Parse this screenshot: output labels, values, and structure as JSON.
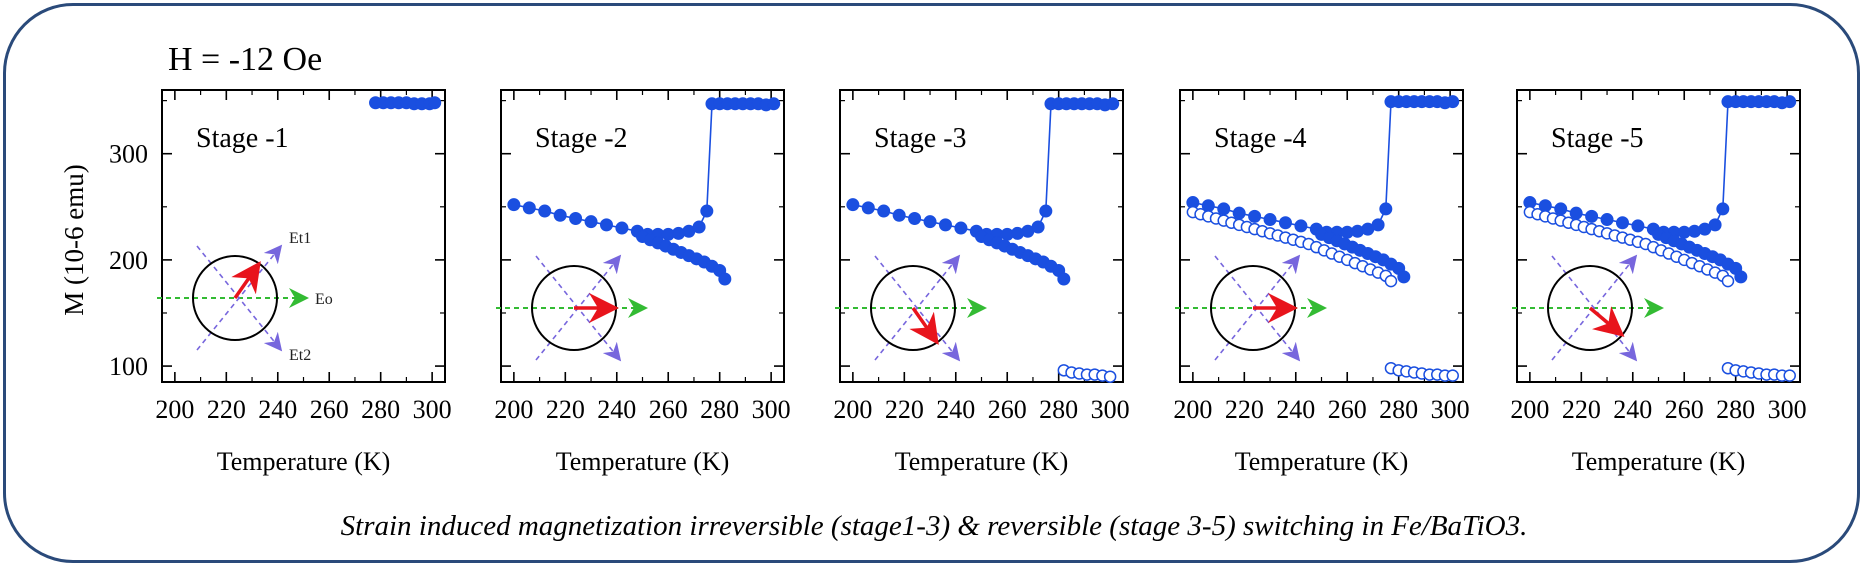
{
  "header": "H = -12 Oe",
  "caption": "Strain induced magnetization irreversible (stage1-3) & reversible (stage 3-5) switching in Fe/BaTiO3.",
  "colors": {
    "data": "#1a4fe0",
    "frame": "#2a4a7a",
    "eo_arrow": "#33bb33",
    "et_arrows": "#7766dd",
    "m_arrow": "#e8141c"
  },
  "chart_data": [
    {
      "type": "scatter",
      "title": "Stage -1",
      "xlabel": "Temperature (K)",
      "ylabel": "M (10-6 emu)",
      "xlim": [
        195,
        305
      ],
      "ylim": [
        85,
        360
      ],
      "xticks": [
        200,
        220,
        240,
        260,
        280,
        300
      ],
      "yticks": [
        100,
        200,
        300
      ],
      "inset": {
        "labels": [
          "Et1",
          "Eo",
          "Et2"
        ],
        "m_angle_deg": 55
      },
      "series": [
        {
          "style": "filled",
          "x": [
            278,
            281,
            284,
            287,
            290,
            293,
            296,
            299,
            301
          ],
          "y": [
            348,
            348,
            348,
            348,
            348,
            347,
            347,
            347,
            348
          ]
        }
      ]
    },
    {
      "type": "scatter",
      "title": "Stage -2",
      "xlabel": "Temperature (K)",
      "xlim": [
        195,
        305
      ],
      "ylim": [
        85,
        360
      ],
      "xticks": [
        200,
        220,
        240,
        260,
        280,
        300
      ],
      "yticks": [
        100,
        200,
        300
      ],
      "inset": {
        "labels": [],
        "m_angle_deg": 0
      },
      "series": [
        {
          "style": "filled",
          "x": [
            200,
            206,
            212,
            218,
            224,
            230,
            236,
            242,
            248,
            252,
            256,
            260,
            264,
            268,
            272,
            275,
            277,
            280,
            283,
            286,
            289,
            292,
            295,
            298,
            301
          ],
          "y": [
            252,
            249,
            246,
            242,
            239,
            236,
            233,
            230,
            227,
            224,
            224,
            224,
            225,
            227,
            231,
            246,
            347,
            347,
            347,
            347,
            347,
            347,
            347,
            346,
            347
          ]
        },
        {
          "style": "filled",
          "x": [
            250,
            253,
            256,
            259,
            262,
            265,
            268,
            271,
            274,
            277,
            280,
            282
          ],
          "y": [
            222,
            219,
            216,
            213,
            210,
            207,
            204,
            201,
            198,
            194,
            190,
            182
          ]
        }
      ]
    },
    {
      "type": "scatter",
      "title": "Stage -3",
      "xlabel": "Temperature (K)",
      "xlim": [
        195,
        305
      ],
      "ylim": [
        85,
        360
      ],
      "xticks": [
        200,
        220,
        240,
        260,
        280,
        300
      ],
      "yticks": [
        100,
        200,
        300
      ],
      "inset": {
        "labels": [],
        "m_angle_deg": -55
      },
      "series": [
        {
          "style": "filled",
          "x": [
            200,
            206,
            212,
            218,
            224,
            230,
            236,
            242,
            248,
            252,
            256,
            260,
            264,
            268,
            272,
            275,
            277,
            280,
            283,
            286,
            289,
            292,
            295,
            298,
            301
          ],
          "y": [
            252,
            249,
            246,
            242,
            239,
            236,
            233,
            230,
            227,
            224,
            224,
            224,
            225,
            227,
            231,
            246,
            347,
            347,
            347,
            347,
            347,
            347,
            347,
            346,
            347
          ]
        },
        {
          "style": "filled",
          "x": [
            250,
            253,
            256,
            259,
            262,
            265,
            268,
            271,
            274,
            277,
            280,
            282
          ],
          "y": [
            222,
            219,
            216,
            213,
            210,
            207,
            204,
            201,
            198,
            194,
            190,
            182
          ]
        },
        {
          "style": "open",
          "x": [
            282,
            285,
            288,
            291,
            294,
            297,
            300
          ],
          "y": [
            96,
            94,
            93,
            92,
            92,
            91,
            90
          ]
        }
      ]
    },
    {
      "type": "scatter",
      "title": "Stage -4",
      "xlabel": "Temperature (K)",
      "xlim": [
        195,
        305
      ],
      "ylim": [
        85,
        360
      ],
      "xticks": [
        200,
        220,
        240,
        260,
        280,
        300
      ],
      "yticks": [
        100,
        200,
        300
      ],
      "inset": {
        "labels": [],
        "m_angle_deg": 0
      },
      "series": [
        {
          "style": "filled",
          "x": [
            200,
            206,
            212,
            218,
            224,
            230,
            236,
            242,
            248,
            252,
            256,
            260,
            264,
            268,
            272,
            275,
            277,
            280,
            283,
            286,
            289,
            292,
            295,
            298,
            301
          ],
          "y": [
            254,
            251,
            248,
            244,
            241,
            238,
            235,
            232,
            229,
            226,
            226,
            226,
            227,
            229,
            233,
            248,
            349,
            349,
            349,
            349,
            349,
            349,
            349,
            348,
            349
          ]
        },
        {
          "style": "filled",
          "x": [
            250,
            253,
            256,
            259,
            262,
            265,
            268,
            271,
            274,
            277,
            280,
            282
          ],
          "y": [
            224,
            221,
            218,
            215,
            212,
            209,
            206,
            203,
            200,
            196,
            192,
            184
          ]
        },
        {
          "style": "open",
          "x": [
            200,
            203,
            206,
            209,
            212,
            215,
            218,
            221,
            224,
            227,
            230,
            233,
            236,
            239,
            242,
            245,
            248,
            251,
            254,
            257,
            260,
            263,
            266,
            269,
            272,
            275,
            277
          ],
          "y": [
            245,
            243,
            241,
            239,
            237,
            235,
            233,
            231,
            229,
            227,
            225,
            223,
            221,
            219,
            217,
            215,
            212,
            209,
            206,
            203,
            200,
            197,
            194,
            191,
            188,
            185,
            180
          ]
        },
        {
          "style": "open",
          "x": [
            277,
            280,
            283,
            286,
            289,
            292,
            295,
            298,
            301
          ],
          "y": [
            98,
            96,
            95,
            94,
            93,
            92,
            92,
            91,
            91
          ]
        }
      ]
    },
    {
      "type": "scatter",
      "title": "Stage -5",
      "xlabel": "Temperature (K)",
      "xlim": [
        195,
        305
      ],
      "ylim": [
        85,
        360
      ],
      "xticks": [
        200,
        220,
        240,
        260,
        280,
        300
      ],
      "yticks": [
        100,
        200,
        300
      ],
      "inset": {
        "labels": [],
        "m_angle_deg": -40
      },
      "series": [
        {
          "style": "filled",
          "x": [
            200,
            206,
            212,
            218,
            224,
            230,
            236,
            242,
            248,
            252,
            256,
            260,
            264,
            268,
            272,
            275,
            277,
            280,
            283,
            286,
            289,
            292,
            295,
            298,
            301
          ],
          "y": [
            254,
            251,
            248,
            244,
            241,
            238,
            235,
            232,
            229,
            226,
            226,
            226,
            227,
            229,
            233,
            248,
            349,
            349,
            349,
            349,
            349,
            349,
            349,
            348,
            349
          ]
        },
        {
          "style": "filled",
          "x": [
            250,
            253,
            256,
            259,
            262,
            265,
            268,
            271,
            274,
            277,
            280,
            282
          ],
          "y": [
            224,
            221,
            218,
            215,
            212,
            209,
            206,
            203,
            200,
            196,
            192,
            184
          ]
        },
        {
          "style": "open",
          "x": [
            200,
            203,
            206,
            209,
            212,
            215,
            218,
            221,
            224,
            227,
            230,
            233,
            236,
            239,
            242,
            245,
            248,
            251,
            254,
            257,
            260,
            263,
            266,
            269,
            272,
            275,
            277
          ],
          "y": [
            245,
            243,
            241,
            239,
            237,
            235,
            233,
            231,
            229,
            227,
            225,
            223,
            221,
            219,
            217,
            215,
            212,
            209,
            206,
            203,
            200,
            197,
            194,
            191,
            188,
            185,
            180
          ]
        },
        {
          "style": "open",
          "x": [
            277,
            280,
            283,
            286,
            289,
            292,
            295,
            298,
            301
          ],
          "y": [
            98,
            96,
            95,
            94,
            93,
            92,
            92,
            91,
            91
          ]
        }
      ]
    }
  ]
}
